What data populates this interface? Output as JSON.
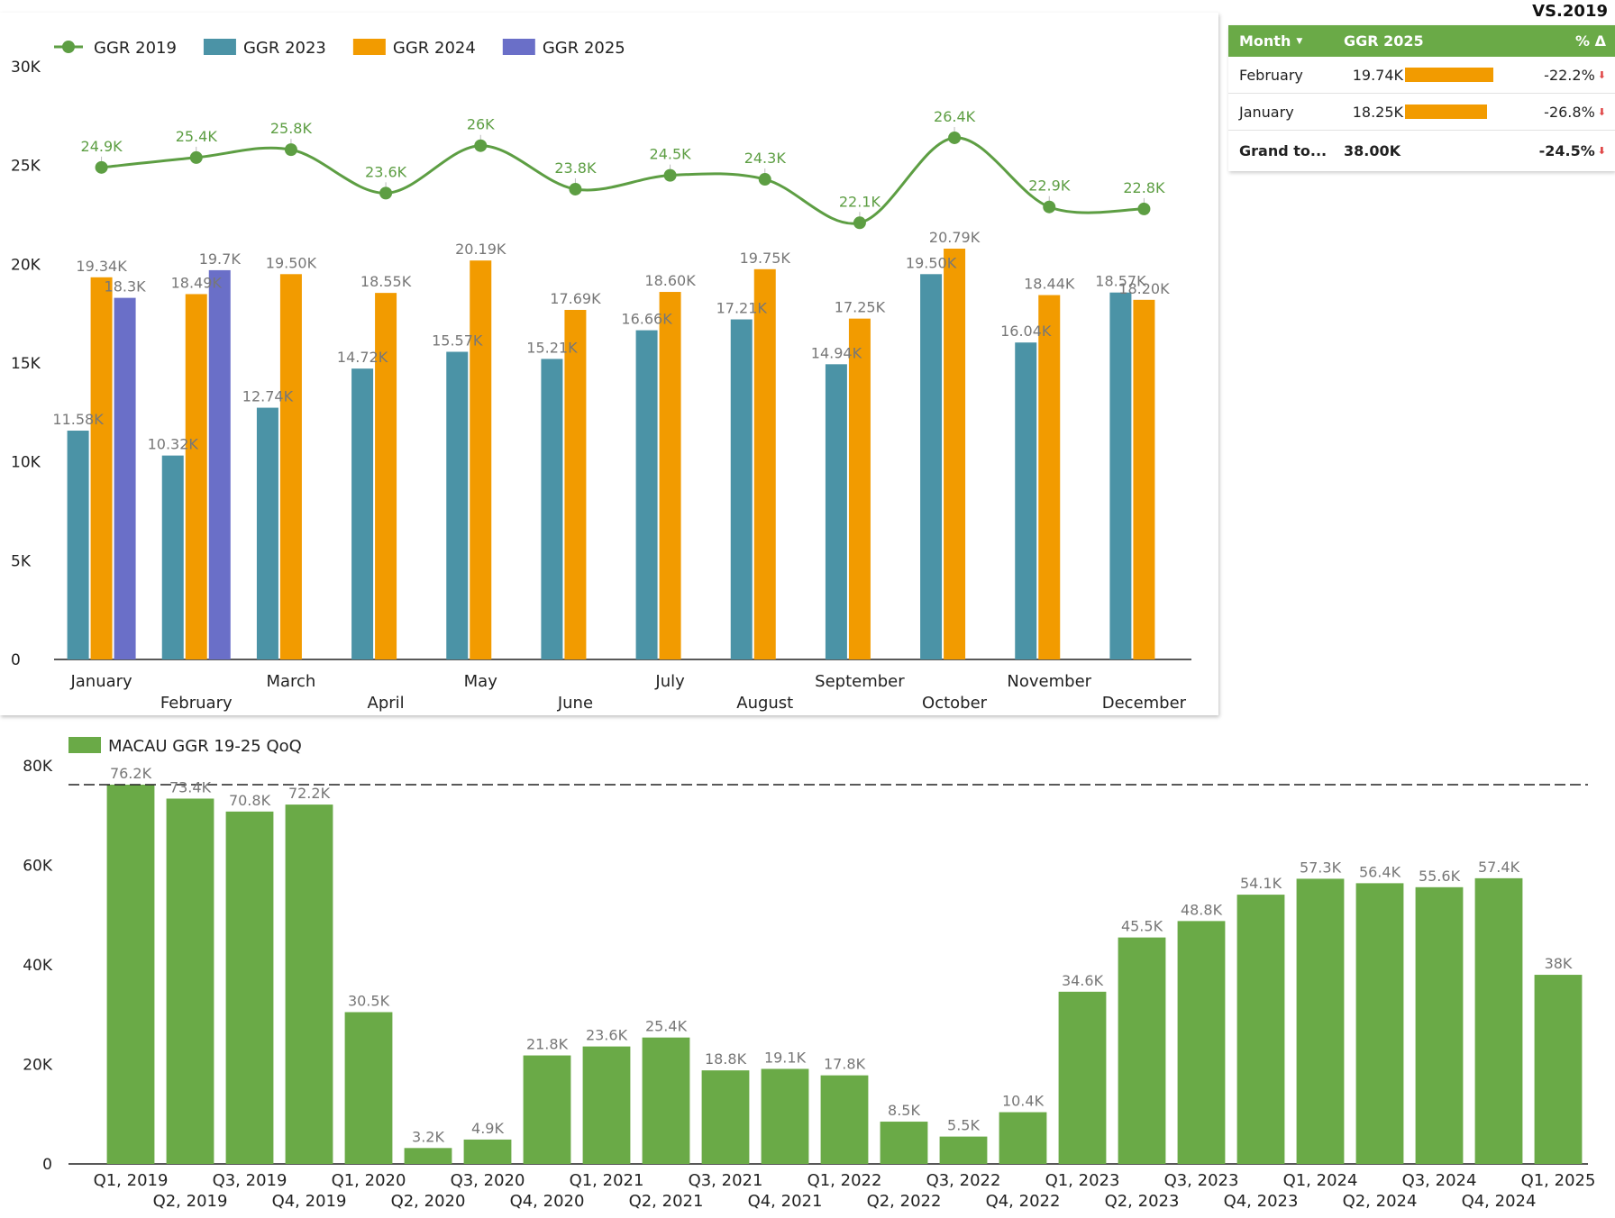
{
  "header": {
    "vs_label": "VS.2019"
  },
  "colors": {
    "ggr2019": "#5d9e43",
    "ggr2023": "#4b93a6",
    "ggr2024": "#f29b00",
    "ggr2025": "#6a6fc8",
    "qoq": "#6aaa47",
    "table_header": "#6aaa47"
  },
  "table": {
    "headers": {
      "month": "Month",
      "ggr": "GGR 2025",
      "pct": "% Δ"
    },
    "rows": [
      {
        "month": "February",
        "ggr": "19.74K",
        "ggr_value": 19.74,
        "pct": "-22.2%"
      },
      {
        "month": "January",
        "ggr": "18.25K",
        "ggr_value": 18.25,
        "pct": "-26.8%"
      }
    ],
    "total": {
      "month": "Grand to...",
      "ggr": "38.00K",
      "pct": "-24.5%"
    },
    "bar_max": 19.74
  },
  "chart_data": [
    {
      "type": "bar",
      "title": "",
      "categories": [
        "January",
        "February",
        "March",
        "April",
        "May",
        "June",
        "July",
        "August",
        "September",
        "October",
        "November",
        "December"
      ],
      "ylim": [
        0,
        30000
      ],
      "yticks": [
        0,
        5000,
        10000,
        15000,
        20000,
        25000,
        30000
      ],
      "ytick_labels": [
        "0",
        "5K",
        "10K",
        "15K",
        "20K",
        "25K",
        "30K"
      ],
      "legend_position": "top-left",
      "series": [
        {
          "name": "GGR 2019",
          "type": "line",
          "values": [
            24900,
            25400,
            25800,
            23600,
            26000,
            23800,
            24500,
            24300,
            22100,
            26400,
            22900,
            22800
          ],
          "labels": [
            "24.9K",
            "25.4K",
            "25.8K",
            "23.6K",
            "26K",
            "23.8K",
            "24.5K",
            "24.3K",
            "22.1K",
            "26.4K",
            "22.9K",
            "22.8K"
          ]
        },
        {
          "name": "GGR 2023",
          "type": "bar",
          "values": [
            11580,
            10320,
            12740,
            14720,
            15570,
            15210,
            16660,
            17210,
            14940,
            19500,
            16040,
            18570
          ],
          "labels": [
            "11.58K",
            "10.32K",
            "12.74K",
            "14.72K",
            "15.57K",
            "15.21K",
            "16.66K",
            "17.21K",
            "14.94K",
            "19.50K",
            "16.04K",
            "18.57K"
          ]
        },
        {
          "name": "GGR 2024",
          "type": "bar",
          "values": [
            19340,
            18490,
            19500,
            18550,
            20190,
            17690,
            18600,
            19750,
            17250,
            20790,
            18440,
            18200
          ],
          "labels": [
            "19.34K",
            "18.49K",
            "19.50K",
            "18.55K",
            "20.19K",
            "17.69K",
            "18.60K",
            "19.75K",
            "17.25K",
            "20.79K",
            "18.44K",
            "18.20K"
          ]
        },
        {
          "name": "GGR 2025",
          "type": "bar",
          "values": [
            18300,
            19700,
            null,
            null,
            null,
            null,
            null,
            null,
            null,
            null,
            null,
            null
          ],
          "labels": [
            "18.3K",
            "19.7K",
            "",
            "",
            "",
            "",
            "",
            "",
            "",
            "",
            "",
            ""
          ]
        }
      ]
    },
    {
      "type": "bar",
      "title": "",
      "categories": [
        "Q1, 2019",
        "Q2, 2019",
        "Q3, 2019",
        "Q4, 2019",
        "Q1, 2020",
        "Q2, 2020",
        "Q3, 2020",
        "Q4, 2020",
        "Q1, 2021",
        "Q2, 2021",
        "Q3, 2021",
        "Q4, 2021",
        "Q1, 2022",
        "Q2, 2022",
        "Q3, 2022",
        "Q4, 2022",
        "Q1, 2023",
        "Q2, 2023",
        "Q3, 2023",
        "Q4, 2023",
        "Q1, 2024",
        "Q2, 2024",
        "Q3, 2024",
        "Q4, 2024",
        "Q1, 2025"
      ],
      "ylim": [
        0,
        80000
      ],
      "yticks": [
        0,
        20000,
        40000,
        60000,
        80000
      ],
      "ytick_labels": [
        "0",
        "20K",
        "40K",
        "60K",
        "80K"
      ],
      "reference_line": 76200,
      "legend_position": "top-left",
      "series": [
        {
          "name": "MACAU GGR 19-25 QoQ",
          "values": [
            76200,
            73400,
            70800,
            72200,
            30500,
            3200,
            4900,
            21800,
            23600,
            25400,
            18800,
            19100,
            17800,
            8500,
            5500,
            10400,
            34600,
            45500,
            48800,
            54100,
            57300,
            56400,
            55600,
            57400,
            38000
          ],
          "labels": [
            "76.2K",
            "73.4K",
            "70.8K",
            "72.2K",
            "30.5K",
            "3.2K",
            "4.9K",
            "21.8K",
            "23.6K",
            "25.4K",
            "18.8K",
            "19.1K",
            "17.8K",
            "8.5K",
            "5.5K",
            "10.4K",
            "34.6K",
            "45.5K",
            "48.8K",
            "54.1K",
            "57.3K",
            "56.4K",
            "55.6K",
            "57.4K",
            "38K"
          ]
        }
      ]
    }
  ]
}
